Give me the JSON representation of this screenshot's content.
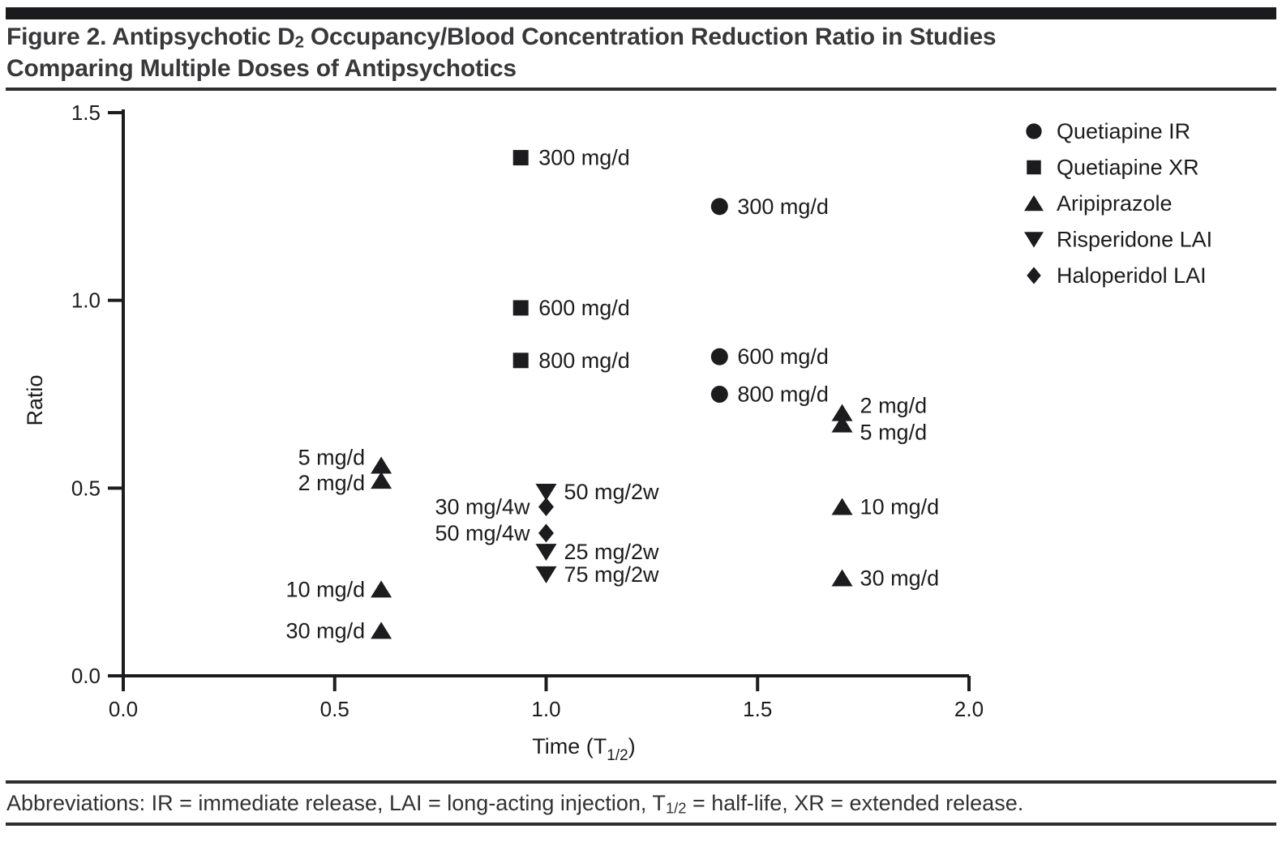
{
  "page": {
    "background": "#ffffff",
    "top_bar_color": "#1b1b1d",
    "title": {
      "pre_sub": "Figure 2. Antipsychotic D",
      "sub": "2",
      "post_sub": " Occupancy/Blood Concentration Reduction Ratio in Studies",
      "line2": "Comparing Multiple Doses of Antipsychotics",
      "color": "#38383a"
    },
    "footer": {
      "pre_sub": "Abbreviations: IR = immediate release, LAI = long-acting injection, T",
      "sub": "1/2",
      "post_sub": " = half-life, XR = extended release.",
      "color": "#323234"
    }
  },
  "chart_data": {
    "type": "scatter",
    "figure_label": "Figure 2.",
    "title": "Antipsychotic D2 Occupancy/Blood Concentration Reduction Ratio in Studies Comparing Multiple Doses of Antipsychotics",
    "xlabel": {
      "pre": "Time (T",
      "sub": "1/2",
      "post": ")"
    },
    "ylabel": "Ratio",
    "xlim": [
      0.0,
      2.0
    ],
    "ylim": [
      0.0,
      1.5
    ],
    "x_ticks": [
      "0.0",
      "0.5",
      "1.0",
      "1.5",
      "2.0"
    ],
    "y_ticks": [
      "0.0",
      "0.5",
      "1.0",
      "1.5"
    ],
    "grid": false,
    "legend_position": "upper right",
    "marker_color": "#1c1c1e",
    "series": [
      {
        "name": "Quetiapine IR",
        "marker": "circle",
        "points": [
          {
            "x": 1.41,
            "y": 1.25,
            "label": "300 mg/d",
            "label_side": "right"
          },
          {
            "x": 1.41,
            "y": 0.85,
            "label": "600 mg/d",
            "label_side": "right"
          },
          {
            "x": 1.41,
            "y": 0.75,
            "label": "800 mg/d",
            "label_side": "right"
          }
        ]
      },
      {
        "name": "Quetiapine XR",
        "marker": "square",
        "points": [
          {
            "x": 0.94,
            "y": 1.38,
            "label": "300 mg/d",
            "label_side": "right"
          },
          {
            "x": 0.94,
            "y": 0.98,
            "label": "600 mg/d",
            "label_side": "right"
          },
          {
            "x": 0.94,
            "y": 0.84,
            "label": "800 mg/d",
            "label_side": "right"
          }
        ]
      },
      {
        "name": "Aripiprazole",
        "marker": "triangle-up",
        "points": [
          {
            "x": 0.61,
            "y": 0.56,
            "label": "5 mg/d",
            "label_side": "left",
            "label_dy": -10
          },
          {
            "x": 0.61,
            "y": 0.52,
            "label": "2 mg/d",
            "label_side": "left",
            "label_dy": 3
          },
          {
            "x": 0.61,
            "y": 0.23,
            "label": "10 mg/d",
            "label_side": "left"
          },
          {
            "x": 0.61,
            "y": 0.12,
            "label": "30 mg/d",
            "label_side": "left"
          },
          {
            "x": 1.7,
            "y": 0.7,
            "label": "2 mg/d",
            "label_side": "right",
            "label_dy": -9
          },
          {
            "x": 1.7,
            "y": 0.67,
            "label": "5 mg/d",
            "label_side": "right",
            "label_dy": 10
          },
          {
            "x": 1.7,
            "y": 0.45,
            "label": "10 mg/d",
            "label_side": "right"
          },
          {
            "x": 1.7,
            "y": 0.26,
            "label": "30 mg/d",
            "label_side": "right"
          }
        ]
      },
      {
        "name": "Risperidone LAI",
        "marker": "triangle-down",
        "points": [
          {
            "x": 1.0,
            "y": 0.49,
            "label": "50 mg/2w",
            "label_side": "right"
          },
          {
            "x": 1.0,
            "y": 0.33,
            "label": "25 mg/2w",
            "label_side": "right"
          },
          {
            "x": 1.0,
            "y": 0.27,
            "label": "75 mg/2w",
            "label_side": "right"
          }
        ]
      },
      {
        "name": "Haloperidol LAI",
        "marker": "diamond",
        "points": [
          {
            "x": 1.0,
            "y": 0.45,
            "label": "30 mg/4w",
            "label_side": "left"
          },
          {
            "x": 1.0,
            "y": 0.38,
            "label": "50 mg/4w",
            "label_side": "left"
          }
        ]
      }
    ]
  }
}
